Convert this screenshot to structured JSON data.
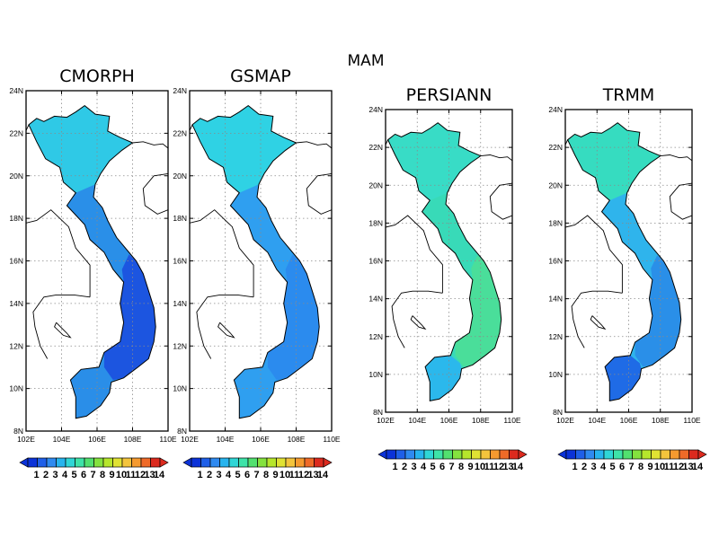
{
  "title": "MAM",
  "colorbar": {
    "colors": [
      "#0b32d8",
      "#1f5fe8",
      "#2f8af0",
      "#27b4ee",
      "#2fd6d6",
      "#3ee3a8",
      "#52e06f",
      "#84e23e",
      "#b6e62c",
      "#e0e233",
      "#f3c43c",
      "#f59a2f",
      "#ef6a28",
      "#dc2a1e"
    ],
    "labels": [
      "1",
      "2",
      "3",
      "4",
      "5",
      "6",
      "7",
      "8",
      "9",
      "10",
      "11",
      "12",
      "13",
      "14"
    ]
  },
  "panels": [
    {
      "title": "CMORPH",
      "lat_ticks": [
        "24N",
        "22N",
        "20N",
        "18N",
        "16N",
        "14N",
        "12N",
        "10N",
        "8N"
      ],
      "lon_ticks": [
        "102E",
        "104E",
        "106E",
        "108E",
        "110E"
      ],
      "north_color": "#2fc9e6",
      "central_color": "#2a8fe8",
      "south_color": "#1c55e0",
      "delta_color": "#2a8ee8",
      "accent_color": "#3ee39a"
    },
    {
      "title": "GSMAP",
      "lat_ticks": [
        "24N",
        "22N",
        "20N",
        "18N",
        "16N",
        "14N",
        "12N",
        "10N",
        "8N"
      ],
      "lon_ticks": [
        "102E",
        "104E",
        "106E",
        "108E",
        "110E"
      ],
      "north_color": "#2fd2e4",
      "central_color": "#2f9ff0",
      "south_color": "#2b8bee",
      "delta_color": "#2f9ff0",
      "accent_color": "#3fe08a"
    },
    {
      "title": "PERSIANN",
      "lat_ticks": [
        "24N",
        "22N",
        "20N",
        "18N",
        "16N",
        "14N",
        "12N",
        "10N",
        "8N"
      ],
      "lon_ticks": [
        "102E",
        "104E",
        "106E",
        "108E",
        "110E"
      ],
      "north_color": "#38dcc6",
      "central_color": "#38dab8",
      "south_color": "#4ade9a",
      "delta_color": "#2bb8ec",
      "accent_color": "#6ee05c"
    },
    {
      "title": "TRMM",
      "lat_ticks": [
        "24N",
        "22N",
        "20N",
        "18N",
        "16N",
        "14N",
        "12N",
        "10N",
        "8N"
      ],
      "lon_ticks": [
        "102E",
        "104E",
        "106E",
        "108E",
        "110E"
      ],
      "north_color": "#36dcc0",
      "central_color": "#2fb4ec",
      "south_color": "#2a8fe8",
      "delta_color": "#1f6be6",
      "accent_color": "#5ee07a"
    }
  ]
}
